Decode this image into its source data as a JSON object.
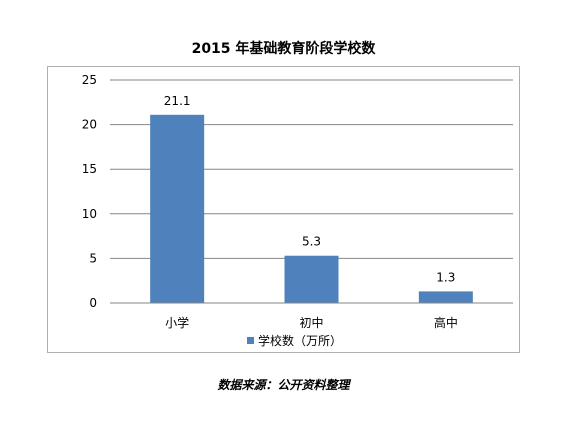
{
  "chart_data": {
    "type": "bar",
    "title": "2015 年基础教育阶段学校数",
    "categories": [
      "小学",
      "初中",
      "高中"
    ],
    "series": [
      {
        "name": "学校数（万所）",
        "values": [
          21.1,
          5.3,
          1.3
        ],
        "color": "#4f81bd"
      }
    ],
    "data_labels": [
      "21.1",
      "5.3",
      "1.3"
    ],
    "yticks": [
      "0",
      "5",
      "10",
      "15",
      "20",
      "25"
    ],
    "ylim": [
      0,
      25
    ],
    "grid": true,
    "legend_position": "bottom"
  },
  "source_note": "数据来源：公开资料整理"
}
